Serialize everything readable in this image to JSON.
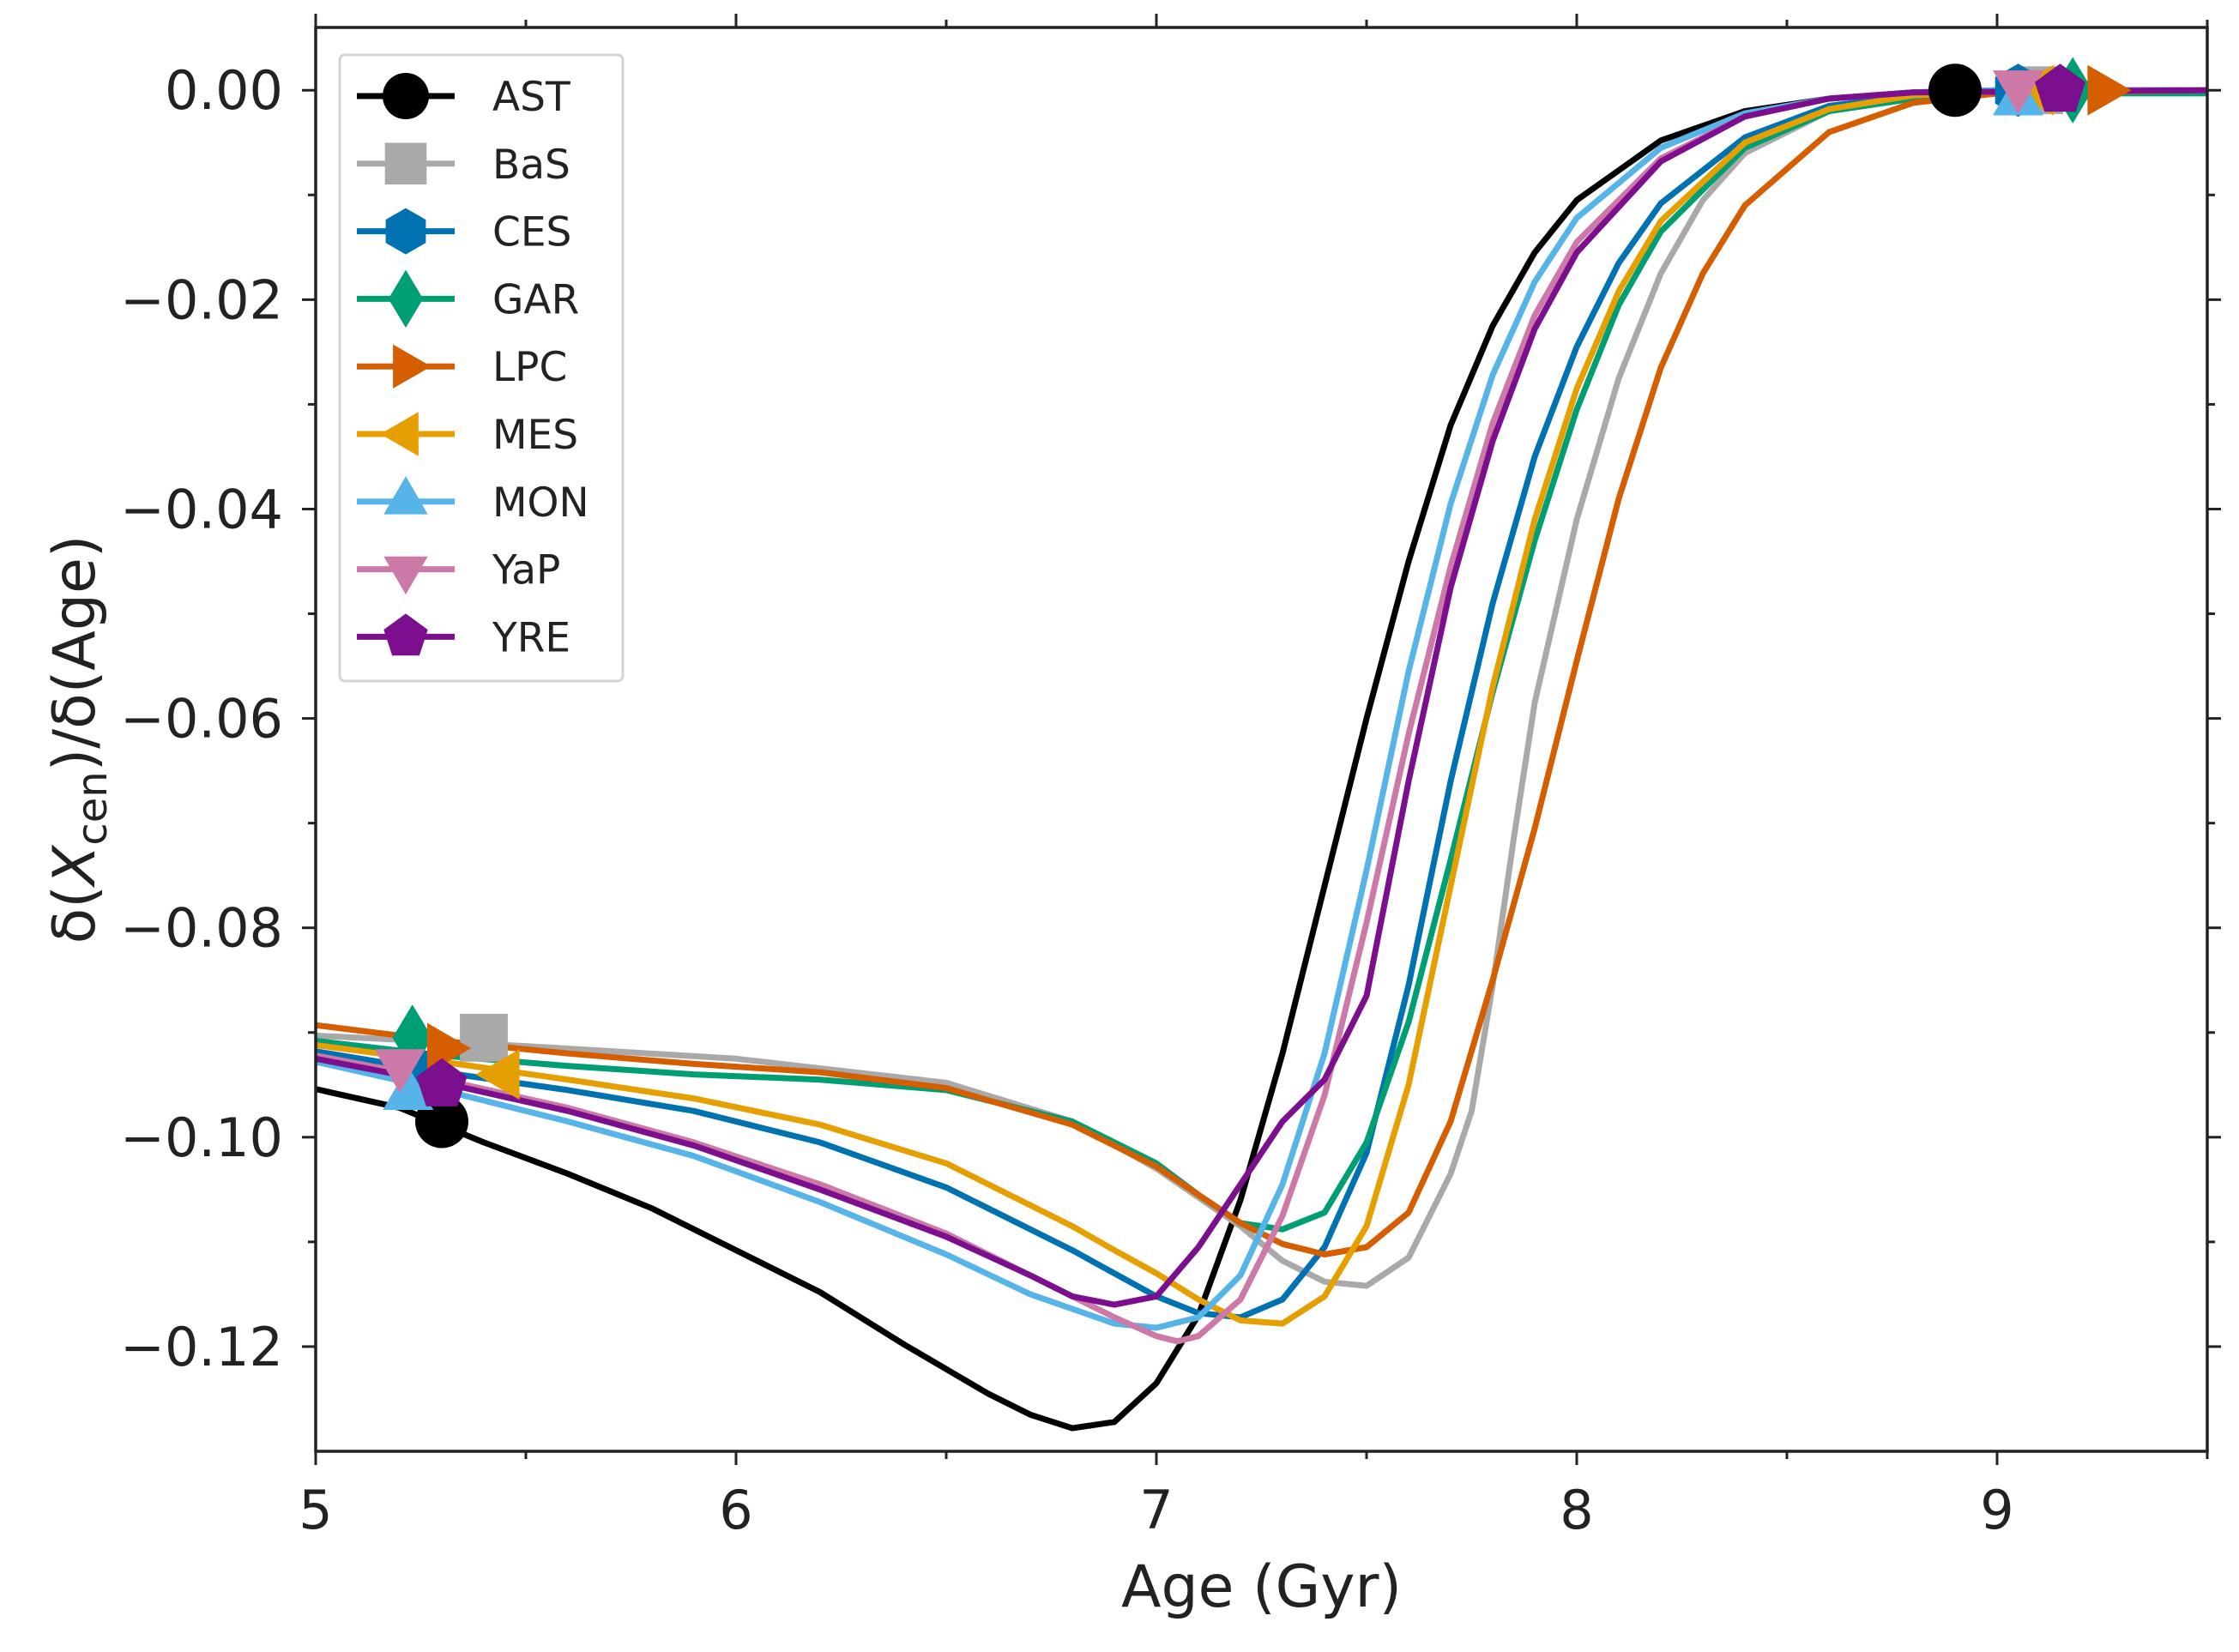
{
  "chart_data": {
    "type": "line",
    "xlabel": "Age (Gyr)",
    "ylabel": {
      "prefix": "δ(",
      "var": "X",
      "sub": "cen",
      "suffix": ")/δ(Age)"
    },
    "xlim": [
      5,
      9.5
    ],
    "ylim": [
      -0.13,
      0.006
    ],
    "x_ticks": [
      5,
      6,
      7,
      8,
      9
    ],
    "x_tick_labels": [
      "5",
      "6",
      "7",
      "8",
      "9"
    ],
    "y_ticks": [
      0.0,
      -0.02,
      -0.04,
      -0.06,
      -0.08,
      -0.1,
      -0.12
    ],
    "y_tick_labels": [
      "0.00",
      "−0.02",
      "−0.04",
      "−0.06",
      "−0.08",
      "−0.10",
      "−0.12"
    ],
    "grid": false,
    "legend_position": "top-left",
    "series": [
      {
        "name": "AST",
        "color": "#000000",
        "marker": "circle",
        "marker_points": [
          [
            5.3,
            -0.0985
          ],
          [
            8.9,
            0.0
          ]
        ],
        "points": [
          [
            5.0,
            -0.0954
          ],
          [
            5.2,
            -0.0972
          ],
          [
            5.4,
            -0.1005
          ],
          [
            5.6,
            -0.1035
          ],
          [
            5.8,
            -0.1068
          ],
          [
            6.0,
            -0.1108
          ],
          [
            6.2,
            -0.1148
          ],
          [
            6.4,
            -0.1198
          ],
          [
            6.6,
            -0.1245
          ],
          [
            6.7,
            -0.1265
          ],
          [
            6.8,
            -0.1278
          ],
          [
            6.9,
            -0.1272
          ],
          [
            7.0,
            -0.1235
          ],
          [
            7.1,
            -0.117
          ],
          [
            7.2,
            -0.106
          ],
          [
            7.3,
            -0.092
          ],
          [
            7.4,
            -0.076
          ],
          [
            7.5,
            -0.06
          ],
          [
            7.6,
            -0.045
          ],
          [
            7.7,
            -0.032
          ],
          [
            7.8,
            -0.0225
          ],
          [
            7.9,
            -0.0155
          ],
          [
            8.0,
            -0.0105
          ],
          [
            8.2,
            -0.0048
          ],
          [
            8.4,
            -0.002
          ],
          [
            8.6,
            -0.0008
          ],
          [
            8.8,
            -0.0002
          ],
          [
            9.0,
            0.0
          ],
          [
            9.5,
            0.0
          ]
        ]
      },
      {
        "name": "BaS",
        "color": "#a9a9a9",
        "marker": "square",
        "marker_points": [
          [
            5.4,
            -0.0905
          ],
          [
            9.1,
            0.0
          ]
        ],
        "points": [
          [
            5.0,
            -0.0903
          ],
          [
            5.5,
            -0.0913
          ],
          [
            6.0,
            -0.0925
          ],
          [
            6.5,
            -0.0948
          ],
          [
            6.8,
            -0.0985
          ],
          [
            7.0,
            -0.103
          ],
          [
            7.2,
            -0.1085
          ],
          [
            7.3,
            -0.1118
          ],
          [
            7.4,
            -0.1138
          ],
          [
            7.5,
            -0.1142
          ],
          [
            7.6,
            -0.1115
          ],
          [
            7.7,
            -0.1035
          ],
          [
            7.75,
            -0.0975
          ],
          [
            7.8,
            -0.0855
          ],
          [
            7.85,
            -0.0715
          ],
          [
            7.9,
            -0.0585
          ],
          [
            8.0,
            -0.041
          ],
          [
            8.1,
            -0.0275
          ],
          [
            8.2,
            -0.0175
          ],
          [
            8.3,
            -0.0105
          ],
          [
            8.4,
            -0.006
          ],
          [
            8.6,
            -0.002
          ],
          [
            8.8,
            -0.0008
          ],
          [
            9.0,
            -0.0002
          ],
          [
            9.5,
            0.0
          ]
        ]
      },
      {
        "name": "CES",
        "color": "#0072b2",
        "marker": "hexagon",
        "marker_points": [
          [
            5.25,
            -0.094
          ],
          [
            9.05,
            0.0
          ]
        ],
        "points": [
          [
            5.0,
            -0.0918
          ],
          [
            5.3,
            -0.0938
          ],
          [
            5.6,
            -0.0955
          ],
          [
            5.9,
            -0.0975
          ],
          [
            6.2,
            -0.1005
          ],
          [
            6.5,
            -0.1048
          ],
          [
            6.8,
            -0.1108
          ],
          [
            7.0,
            -0.1152
          ],
          [
            7.1,
            -0.1168
          ],
          [
            7.2,
            -0.1172
          ],
          [
            7.3,
            -0.1155
          ],
          [
            7.4,
            -0.1105
          ],
          [
            7.5,
            -0.1015
          ],
          [
            7.6,
            -0.0855
          ],
          [
            7.7,
            -0.066
          ],
          [
            7.8,
            -0.049
          ],
          [
            7.9,
            -0.035
          ],
          [
            8.0,
            -0.0245
          ],
          [
            8.1,
            -0.0165
          ],
          [
            8.2,
            -0.0108
          ],
          [
            8.4,
            -0.0045
          ],
          [
            8.6,
            -0.0015
          ],
          [
            8.8,
            -0.0005
          ],
          [
            9.0,
            -0.0001
          ],
          [
            9.5,
            0.0
          ]
        ]
      },
      {
        "name": "GAR",
        "color": "#009e73",
        "marker": "diamond",
        "marker_points": [
          [
            5.23,
            -0.0905
          ],
          [
            9.18,
            0.0
          ]
        ],
        "points": [
          [
            5.0,
            -0.0908
          ],
          [
            5.3,
            -0.0922
          ],
          [
            5.6,
            -0.0932
          ],
          [
            5.9,
            -0.094
          ],
          [
            6.2,
            -0.0945
          ],
          [
            6.5,
            -0.0955
          ],
          [
            6.8,
            -0.0985
          ],
          [
            7.0,
            -0.1025
          ],
          [
            7.1,
            -0.1055
          ],
          [
            7.2,
            -0.1082
          ],
          [
            7.3,
            -0.1088
          ],
          [
            7.4,
            -0.1072
          ],
          [
            7.5,
            -0.1005
          ],
          [
            7.6,
            -0.089
          ],
          [
            7.7,
            -0.0735
          ],
          [
            7.8,
            -0.0575
          ],
          [
            7.9,
            -0.043
          ],
          [
            8.0,
            -0.0305
          ],
          [
            8.1,
            -0.0205
          ],
          [
            8.2,
            -0.0135
          ],
          [
            8.4,
            -0.0055
          ],
          [
            8.6,
            -0.002
          ],
          [
            8.8,
            -0.0008
          ],
          [
            9.0,
            -0.0003
          ],
          [
            9.5,
            -0.0003
          ]
        ]
      },
      {
        "name": "LPC",
        "color": "#d55e00",
        "marker": "triangle-right",
        "marker_points": [
          [
            5.3,
            -0.0915
          ],
          [
            9.25,
            0.0
          ]
        ],
        "points": [
          [
            5.0,
            -0.0893
          ],
          [
            5.3,
            -0.0908
          ],
          [
            5.6,
            -0.092
          ],
          [
            5.9,
            -0.093
          ],
          [
            6.2,
            -0.0938
          ],
          [
            6.5,
            -0.0953
          ],
          [
            6.8,
            -0.0988
          ],
          [
            7.0,
            -0.1028
          ],
          [
            7.2,
            -0.1082
          ],
          [
            7.3,
            -0.1102
          ],
          [
            7.4,
            -0.1112
          ],
          [
            7.5,
            -0.1105
          ],
          [
            7.6,
            -0.1072
          ],
          [
            7.7,
            -0.0985
          ],
          [
            7.8,
            -0.085
          ],
          [
            7.9,
            -0.0705
          ],
          [
            8.0,
            -0.0545
          ],
          [
            8.1,
            -0.039
          ],
          [
            8.2,
            -0.0265
          ],
          [
            8.3,
            -0.0175
          ],
          [
            8.4,
            -0.011
          ],
          [
            8.6,
            -0.004
          ],
          [
            8.8,
            -0.0012
          ],
          [
            9.0,
            -0.0003
          ],
          [
            9.5,
            0.0
          ]
        ]
      },
      {
        "name": "MES",
        "color": "#e69f00",
        "marker": "triangle-left",
        "marker_points": [
          [
            5.45,
            -0.094
          ],
          [
            9.1,
            0.0
          ]
        ],
        "points": [
          [
            5.0,
            -0.0912
          ],
          [
            5.3,
            -0.0928
          ],
          [
            5.6,
            -0.0945
          ],
          [
            5.9,
            -0.0963
          ],
          [
            6.2,
            -0.0988
          ],
          [
            6.5,
            -0.1025
          ],
          [
            6.8,
            -0.1085
          ],
          [
            6.9,
            -0.1108
          ],
          [
            7.0,
            -0.113
          ],
          [
            7.1,
            -0.1155
          ],
          [
            7.2,
            -0.1175
          ],
          [
            7.3,
            -0.1178
          ],
          [
            7.4,
            -0.1152
          ],
          [
            7.5,
            -0.1085
          ],
          [
            7.6,
            -0.095
          ],
          [
            7.7,
            -0.076
          ],
          [
            7.8,
            -0.057
          ],
          [
            7.9,
            -0.041
          ],
          [
            8.0,
            -0.0285
          ],
          [
            8.1,
            -0.0192
          ],
          [
            8.2,
            -0.0125
          ],
          [
            8.4,
            -0.005
          ],
          [
            8.6,
            -0.0018
          ],
          [
            8.8,
            -0.0005
          ],
          [
            9.0,
            -0.0001
          ],
          [
            9.5,
            0.0
          ]
        ]
      },
      {
        "name": "MON",
        "color": "#56b4e9",
        "marker": "triangle-up",
        "marker_points": [
          [
            5.22,
            -0.096
          ],
          [
            9.05,
            -0.001
          ]
        ],
        "points": [
          [
            5.0,
            -0.0928
          ],
          [
            5.3,
            -0.0955
          ],
          [
            5.6,
            -0.0985
          ],
          [
            5.9,
            -0.1018
          ],
          [
            6.2,
            -0.1062
          ],
          [
            6.5,
            -0.1112
          ],
          [
            6.7,
            -0.115
          ],
          [
            6.9,
            -0.1178
          ],
          [
            7.0,
            -0.1182
          ],
          [
            7.1,
            -0.1172
          ],
          [
            7.2,
            -0.1132
          ],
          [
            7.3,
            -0.1045
          ],
          [
            7.4,
            -0.092
          ],
          [
            7.5,
            -0.0745
          ],
          [
            7.6,
            -0.0555
          ],
          [
            7.7,
            -0.0395
          ],
          [
            7.8,
            -0.0272
          ],
          [
            7.9,
            -0.0183
          ],
          [
            8.0,
            -0.0122
          ],
          [
            8.2,
            -0.0055
          ],
          [
            8.4,
            -0.0022
          ],
          [
            8.6,
            -0.0008
          ],
          [
            8.8,
            -0.0002
          ],
          [
            9.0,
            0.0
          ],
          [
            9.5,
            0.0
          ]
        ]
      },
      {
        "name": "YaP",
        "color": "#cc79a7",
        "marker": "triangle-down",
        "marker_points": [
          [
            5.2,
            -0.093
          ],
          [
            9.05,
            0.0005
          ]
        ],
        "points": [
          [
            5.0,
            -0.0922
          ],
          [
            5.3,
            -0.0945
          ],
          [
            5.6,
            -0.0972
          ],
          [
            5.9,
            -0.1005
          ],
          [
            6.2,
            -0.1045
          ],
          [
            6.5,
            -0.1092
          ],
          [
            6.8,
            -0.1152
          ],
          [
            6.9,
            -0.1172
          ],
          [
            7.0,
            -0.119
          ],
          [
            7.05,
            -0.1195
          ],
          [
            7.1,
            -0.119
          ],
          [
            7.2,
            -0.1155
          ],
          [
            7.3,
            -0.1075
          ],
          [
            7.4,
            -0.096
          ],
          [
            7.5,
            -0.0795
          ],
          [
            7.6,
            -0.0615
          ],
          [
            7.7,
            -0.0455
          ],
          [
            7.8,
            -0.0318
          ],
          [
            7.9,
            -0.0215
          ],
          [
            8.0,
            -0.0145
          ],
          [
            8.2,
            -0.0065
          ],
          [
            8.4,
            -0.0025
          ],
          [
            8.6,
            -0.0008
          ],
          [
            8.8,
            -0.0002
          ],
          [
            9.5,
            0.0
          ]
        ]
      },
      {
        "name": "YRE",
        "color": "#7b0f8e",
        "marker": "pentagon",
        "marker_points": [
          [
            5.3,
            -0.095
          ],
          [
            9.15,
            0.0
          ]
        ],
        "points": [
          [
            5.0,
            -0.0925
          ],
          [
            5.3,
            -0.0948
          ],
          [
            5.6,
            -0.0975
          ],
          [
            5.9,
            -0.1008
          ],
          [
            6.2,
            -0.105
          ],
          [
            6.5,
            -0.1095
          ],
          [
            6.7,
            -0.1132
          ],
          [
            6.8,
            -0.1152
          ],
          [
            6.9,
            -0.116
          ],
          [
            7.0,
            -0.1152
          ],
          [
            7.1,
            -0.1105
          ],
          [
            7.2,
            -0.1045
          ],
          [
            7.3,
            -0.0985
          ],
          [
            7.4,
            -0.0945
          ],
          [
            7.5,
            -0.0865
          ],
          [
            7.6,
            -0.066
          ],
          [
            7.7,
            -0.0475
          ],
          [
            7.8,
            -0.0335
          ],
          [
            7.9,
            -0.0228
          ],
          [
            8.0,
            -0.0155
          ],
          [
            8.2,
            -0.0068
          ],
          [
            8.4,
            -0.0025
          ],
          [
            8.6,
            -0.0008
          ],
          [
            8.8,
            -0.0002
          ],
          [
            9.5,
            0.0
          ]
        ]
      }
    ]
  }
}
